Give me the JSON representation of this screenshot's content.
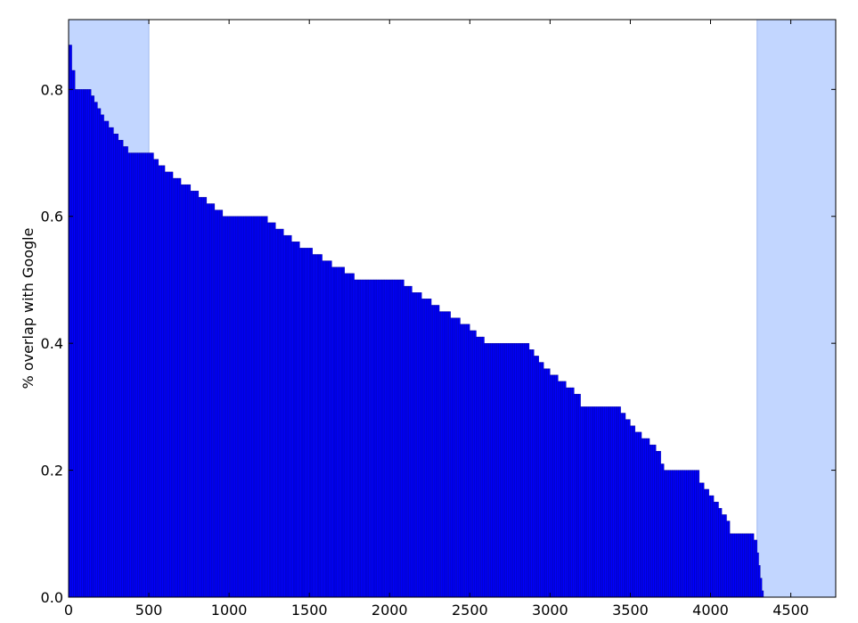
{
  "chart_data": {
    "type": "bar",
    "title": "",
    "xlabel": "",
    "ylabel": "% overlap with Google",
    "xlim": [
      0,
      4780
    ],
    "ylim": [
      0,
      0.91
    ],
    "grid": false,
    "bar_color": "#0000ff",
    "bar_width": 10,
    "x_ticks": [
      0,
      500,
      1000,
      1500,
      2000,
      2500,
      3000,
      3500,
      4000,
      4500
    ],
    "x_tick_labels": [
      "0",
      "500",
      "1000",
      "1500",
      "2000",
      "2500",
      "3000",
      "3500",
      "4000",
      "4500"
    ],
    "y_ticks": [
      0.0,
      0.2,
      0.4,
      0.6,
      0.8
    ],
    "y_tick_labels": [
      "0.0",
      "0.2",
      "0.4",
      "0.6",
      "0.8"
    ],
    "highlight_regions": [
      {
        "x": [
          0,
          500
        ],
        "color": "#c2d6ff"
      },
      {
        "x": [
          4290,
          4780
        ],
        "color": "#c2d6ff"
      }
    ],
    "series": [
      {
        "points": [
          [
            0,
            0.87
          ],
          [
            20,
            0.83
          ],
          [
            40,
            0.8
          ],
          [
            120,
            0.8
          ],
          [
            140,
            0.79
          ],
          [
            160,
            0.78
          ],
          [
            180,
            0.77
          ],
          [
            200,
            0.76
          ],
          [
            220,
            0.75
          ],
          [
            250,
            0.74
          ],
          [
            280,
            0.73
          ],
          [
            310,
            0.72
          ],
          [
            340,
            0.71
          ],
          [
            370,
            0.7
          ],
          [
            500,
            0.7
          ],
          [
            530,
            0.69
          ],
          [
            560,
            0.68
          ],
          [
            600,
            0.67
          ],
          [
            650,
            0.66
          ],
          [
            700,
            0.65
          ],
          [
            760,
            0.64
          ],
          [
            810,
            0.63
          ],
          [
            860,
            0.62
          ],
          [
            910,
            0.61
          ],
          [
            960,
            0.6
          ],
          [
            1200,
            0.6
          ],
          [
            1240,
            0.59
          ],
          [
            1290,
            0.58
          ],
          [
            1340,
            0.57
          ],
          [
            1390,
            0.56
          ],
          [
            1440,
            0.55
          ],
          [
            1520,
            0.54
          ],
          [
            1580,
            0.53
          ],
          [
            1640,
            0.52
          ],
          [
            1720,
            0.51
          ],
          [
            1780,
            0.5
          ],
          [
            2060,
            0.5
          ],
          [
            2090,
            0.49
          ],
          [
            2140,
            0.48
          ],
          [
            2200,
            0.47
          ],
          [
            2260,
            0.46
          ],
          [
            2310,
            0.45
          ],
          [
            2380,
            0.44
          ],
          [
            2440,
            0.43
          ],
          [
            2500,
            0.42
          ],
          [
            2540,
            0.41
          ],
          [
            2590,
            0.4
          ],
          [
            2840,
            0.4
          ],
          [
            2870,
            0.39
          ],
          [
            2900,
            0.38
          ],
          [
            2930,
            0.37
          ],
          [
            2960,
            0.36
          ],
          [
            3000,
            0.35
          ],
          [
            3050,
            0.34
          ],
          [
            3100,
            0.33
          ],
          [
            3150,
            0.32
          ],
          [
            3190,
            0.3
          ],
          [
            3410,
            0.3
          ],
          [
            3440,
            0.29
          ],
          [
            3470,
            0.28
          ],
          [
            3500,
            0.27
          ],
          [
            3530,
            0.26
          ],
          [
            3570,
            0.25
          ],
          [
            3620,
            0.24
          ],
          [
            3660,
            0.23
          ],
          [
            3690,
            0.21
          ],
          [
            3710,
            0.2
          ],
          [
            3900,
            0.2
          ],
          [
            3930,
            0.18
          ],
          [
            3960,
            0.17
          ],
          [
            3990,
            0.16
          ],
          [
            4020,
            0.15
          ],
          [
            4050,
            0.14
          ],
          [
            4070,
            0.13
          ],
          [
            4100,
            0.12
          ],
          [
            4120,
            0.1
          ],
          [
            4250,
            0.1
          ],
          [
            4270,
            0.09
          ],
          [
            4290,
            0.07
          ],
          [
            4300,
            0.05
          ],
          [
            4310,
            0.03
          ],
          [
            4320,
            0.01
          ],
          [
            4330,
            0.0
          ]
        ]
      }
    ]
  }
}
